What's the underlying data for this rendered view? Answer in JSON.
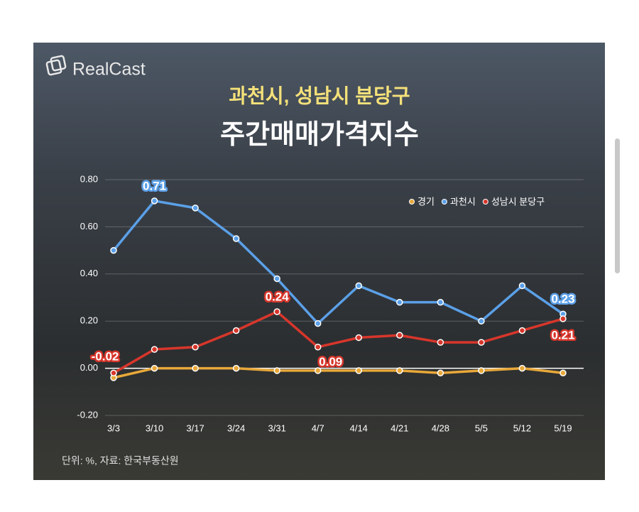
{
  "chart_data": {
    "type": "line",
    "brand": "RealCast",
    "subtitle": "과천시, 성남시 분당구",
    "title": "주간매매가격지수",
    "note": "단위: %, 자료: 한국부동산원",
    "categories": [
      "3/3",
      "3/10",
      "3/17",
      "3/24",
      "3/31",
      "4/7",
      "4/14",
      "4/21",
      "4/28",
      "5/5",
      "5/12",
      "5/19"
    ],
    "series": [
      {
        "name": "경기",
        "color": "#e8a83a",
        "values": [
          -0.04,
          0.0,
          0.0,
          0.0,
          -0.01,
          -0.01,
          -0.01,
          -0.01,
          -0.02,
          -0.01,
          0.0,
          -0.02
        ]
      },
      {
        "name": "과천시",
        "color": "#5ba0e8",
        "values": [
          0.5,
          0.71,
          0.68,
          0.55,
          0.38,
          0.19,
          0.35,
          0.28,
          0.28,
          0.2,
          0.35,
          0.23
        ],
        "value_labels": [
          null,
          "0.71",
          null,
          null,
          null,
          null,
          null,
          null,
          null,
          null,
          null,
          "0.23"
        ]
      },
      {
        "name": "성남시 분당구",
        "color": "#d8362b",
        "values": [
          -0.02,
          0.08,
          0.09,
          0.16,
          0.24,
          0.09,
          0.13,
          0.14,
          0.11,
          0.11,
          0.16,
          0.21
        ],
        "value_labels": [
          "-0.02",
          null,
          null,
          null,
          "0.24",
          "0.09",
          null,
          null,
          null,
          null,
          null,
          "0.21"
        ]
      }
    ],
    "ylim": [
      -0.2,
      0.8
    ],
    "yticks": [
      {
        "value": -0.2,
        "label": "-0.20"
      },
      {
        "value": 0,
        "label": "0.00"
      },
      {
        "value": 0.2,
        "label": "0.20"
      },
      {
        "value": 0.4,
        "label": "0.40"
      },
      {
        "value": 0.6,
        "label": "0.60"
      },
      {
        "value": 0.8,
        "label": "0.80"
      }
    ],
    "grid": true,
    "legend": "top-right"
  }
}
